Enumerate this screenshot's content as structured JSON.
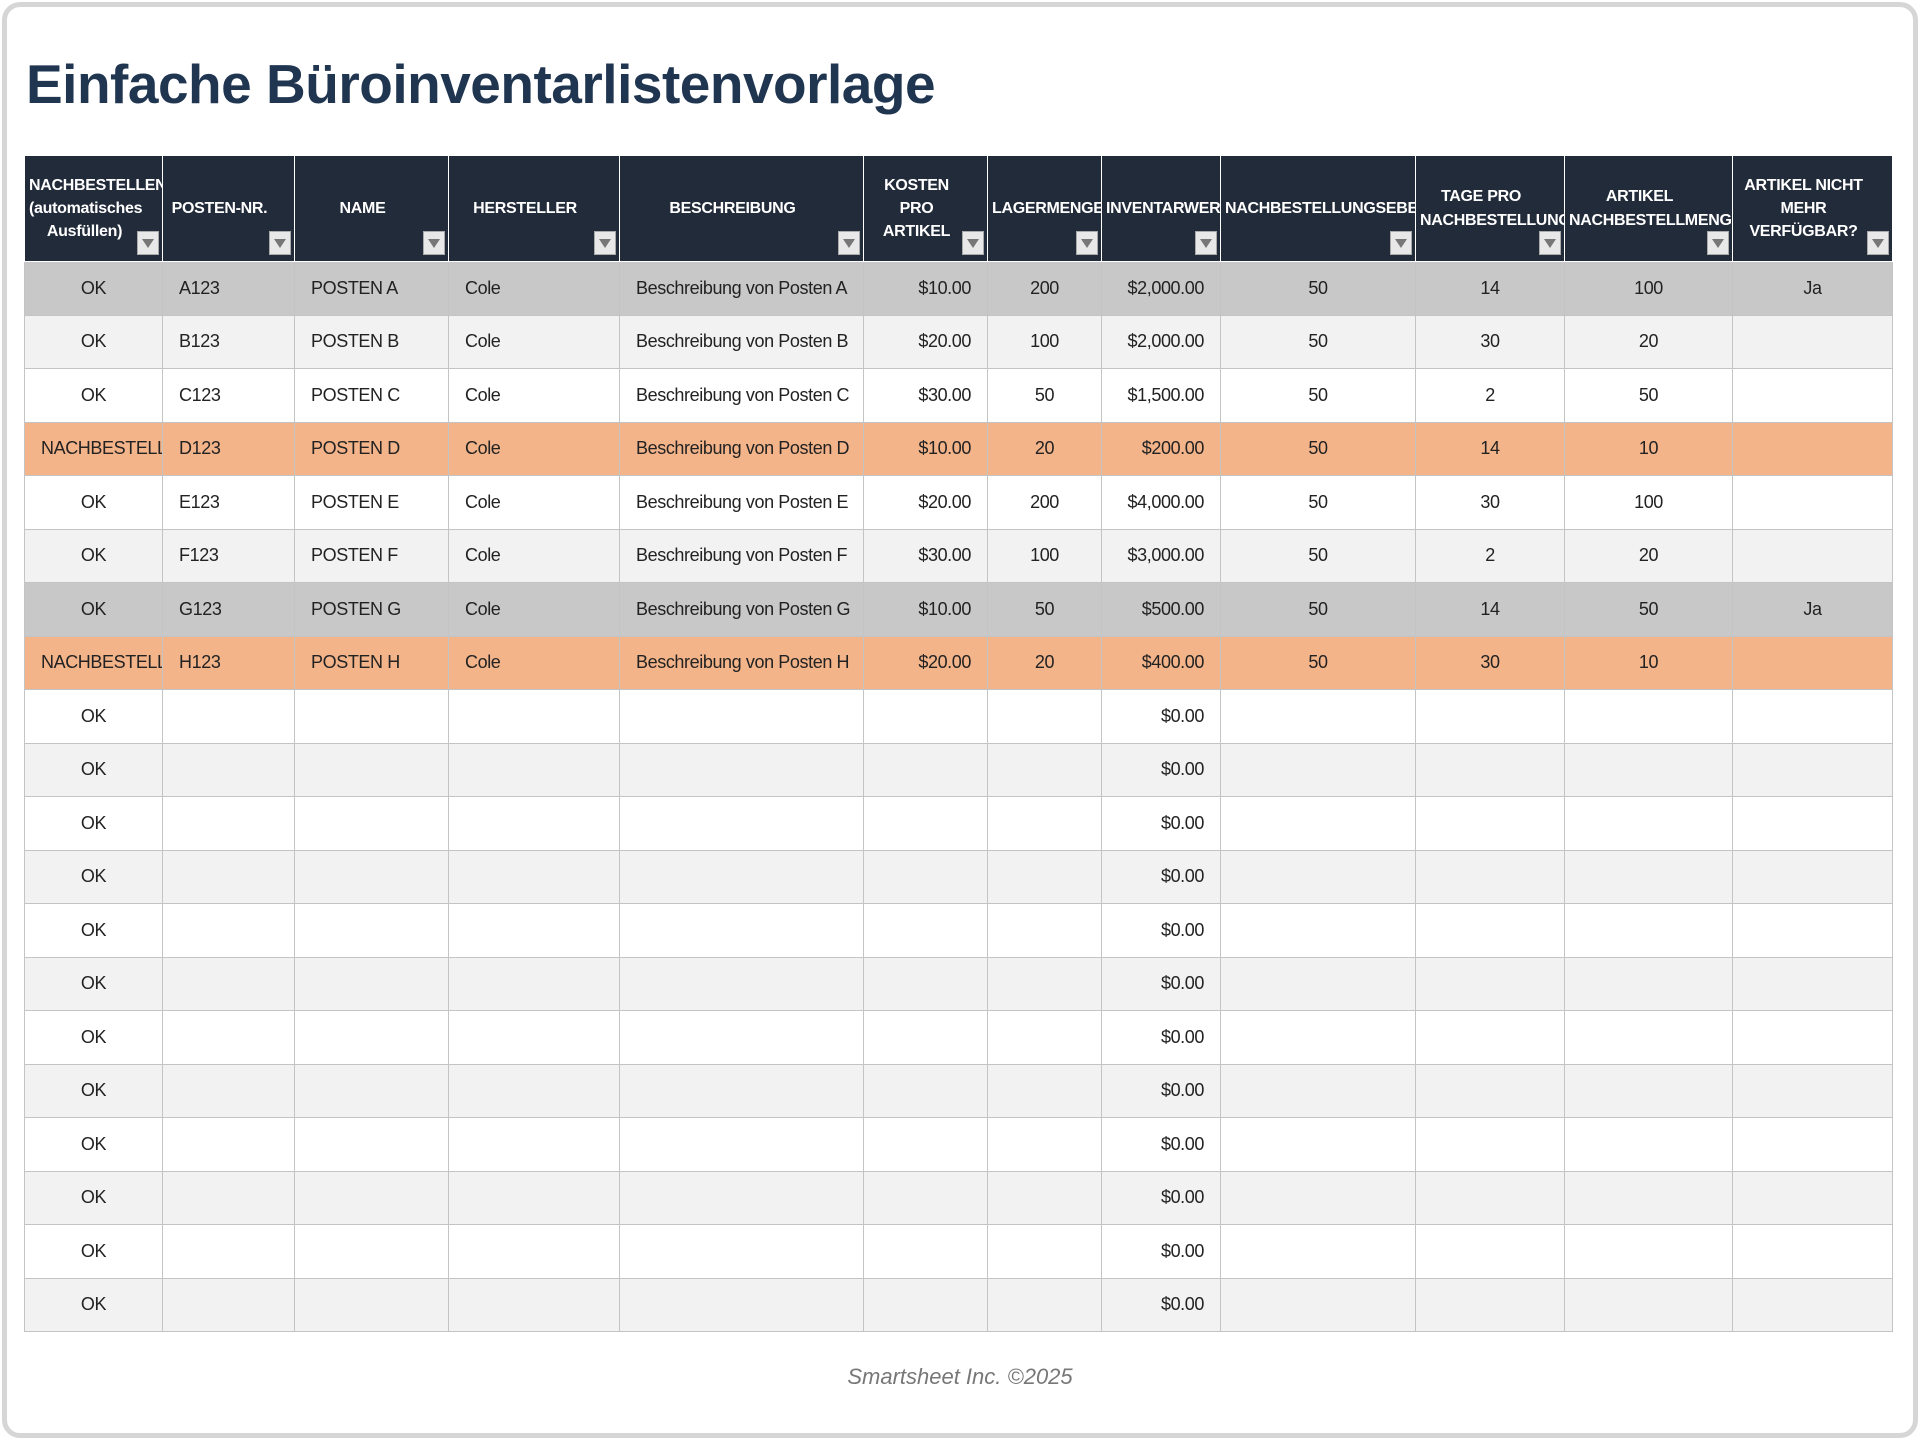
{
  "title": "Einfache Büroinventarlistenvorlage",
  "table": {
    "headers": [
      "NACHBESTELLEN (automatisches Ausfüllen)",
      "POSTEN-NR.",
      "NAME",
      "HERSTELLER",
      "BESCHREIBUNG",
      "KOSTEN PRO ARTIKEL",
      "LAGERMENGE",
      "INVENTARWERT",
      "NACHBESTELLUNGSEBENE",
      "TAGE PRO NACHBESTELLUNG",
      "ARTIKEL NACHBESTELLMENGE",
      "ARTIKEL NICHT MEHR VERFÜGBAR?"
    ],
    "rows": [
      [
        "OK",
        "A123",
        "POSTEN A",
        "Cole",
        "Beschreibung von Posten A",
        "$10.00",
        200,
        "$2,000.00",
        50,
        14,
        100,
        "Ja"
      ],
      [
        "OK",
        "B123",
        "POSTEN B",
        "Cole",
        "Beschreibung von Posten B",
        "$20.00",
        100,
        "$2,000.00",
        50,
        30,
        20,
        null
      ],
      [
        "OK",
        "C123",
        "POSTEN C",
        "Cole",
        "Beschreibung von Posten C",
        "$30.00",
        50,
        "$1,500.00",
        50,
        2,
        50,
        null
      ],
      [
        "NACHBESTELLEN",
        "D123",
        "POSTEN D",
        "Cole",
        "Beschreibung von Posten D",
        "$10.00",
        20,
        "$200.00",
        50,
        14,
        10,
        null
      ],
      [
        "OK",
        "E123",
        "POSTEN E",
        "Cole",
        "Beschreibung von Posten E",
        "$20.00",
        200,
        "$4,000.00",
        50,
        30,
        100,
        null
      ],
      [
        "OK",
        "F123",
        "POSTEN F",
        "Cole",
        "Beschreibung von Posten F",
        "$30.00",
        100,
        "$3,000.00",
        50,
        2,
        20,
        null
      ],
      [
        "OK",
        "G123",
        "POSTEN G",
        "Cole",
        "Beschreibung von Posten G",
        "$10.00",
        50,
        "$500.00",
        50,
        14,
        50,
        "Ja"
      ],
      [
        "NACHBESTELLEN",
        "H123",
        "POSTEN H",
        "Cole",
        "Beschreibung von Posten H",
        "$20.00",
        20,
        "$400.00",
        50,
        30,
        10,
        null
      ],
      [
        "OK",
        null,
        null,
        null,
        null,
        null,
        null,
        "$0.00",
        null,
        null,
        null,
        null
      ],
      [
        "OK",
        null,
        null,
        null,
        null,
        null,
        null,
        "$0.00",
        null,
        null,
        null,
        null
      ],
      [
        "OK",
        null,
        null,
        null,
        null,
        null,
        null,
        "$0.00",
        null,
        null,
        null,
        null
      ],
      [
        "OK",
        null,
        null,
        null,
        null,
        null,
        null,
        "$0.00",
        null,
        null,
        null,
        null
      ],
      [
        "OK",
        null,
        null,
        null,
        null,
        null,
        null,
        "$0.00",
        null,
        null,
        null,
        null
      ],
      [
        "OK",
        null,
        null,
        null,
        null,
        null,
        null,
        "$0.00",
        null,
        null,
        null,
        null
      ],
      [
        "OK",
        null,
        null,
        null,
        null,
        null,
        null,
        "$0.00",
        null,
        null,
        null,
        null
      ],
      [
        "OK",
        null,
        null,
        null,
        null,
        null,
        null,
        "$0.00",
        null,
        null,
        null,
        null
      ],
      [
        "OK",
        null,
        null,
        null,
        null,
        null,
        null,
        "$0.00",
        null,
        null,
        null,
        null
      ],
      [
        "OK",
        null,
        null,
        null,
        null,
        null,
        null,
        "$0.00",
        null,
        null,
        null,
        null
      ],
      [
        "OK",
        null,
        null,
        null,
        null,
        null,
        null,
        "$0.00",
        null,
        null,
        null,
        null
      ],
      [
        "OK",
        null,
        null,
        null,
        null,
        null,
        null,
        "$0.00",
        null,
        null,
        null,
        null
      ]
    ]
  },
  "footer": "Smartsheet Inc. ©2025"
}
